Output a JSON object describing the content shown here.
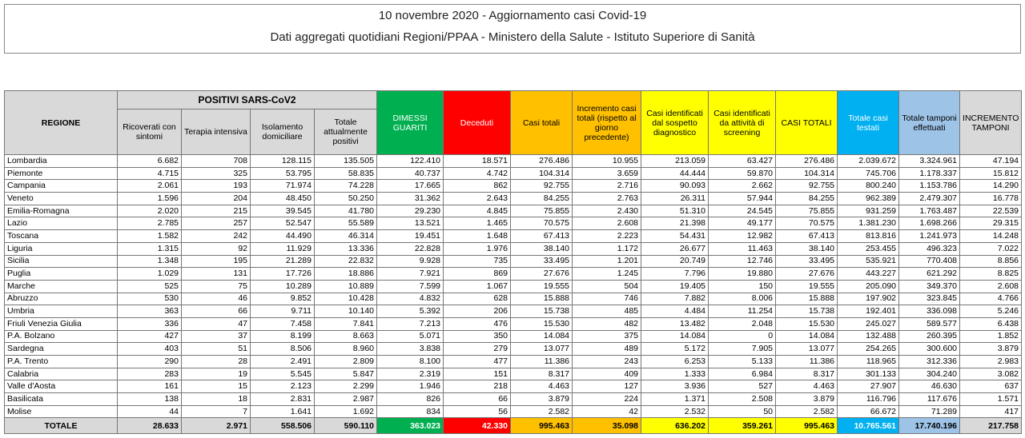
{
  "header": {
    "title": "10 novembre 2020 - Aggiornamento casi Covid-19",
    "subtitle": "Dati aggregati quotidiani Regioni/PPAA - Ministero della Salute - Istituto Superiore di Sanità"
  },
  "table": {
    "group_header": "POSITIVI SARS-CoV2",
    "columns": [
      "REGIONE",
      "Ricoverati con sintomi",
      "Terapia intensiva",
      "Isolamento domiciliare",
      "Totale attualmente positivi",
      "DIMESSI GUARITI",
      "Deceduti",
      "Casi totali",
      "Incremento casi totali (rispetto al giorno precedente)",
      "Casi identificati dal sospetto diagnostico",
      "Casi identificati da attività di screening",
      "CASI TOTALI",
      "Totale casi testati",
      "Totale tamponi effettuati",
      "INCREMENTO TAMPONI"
    ],
    "rows": [
      [
        "Lombardia",
        "6.682",
        "708",
        "128.115",
        "135.505",
        "122.410",
        "18.571",
        "276.486",
        "10.955",
        "213.059",
        "63.427",
        "276.486",
        "2.039.672",
        "3.324.961",
        "47.194"
      ],
      [
        "Piemonte",
        "4.715",
        "325",
        "53.795",
        "58.835",
        "40.737",
        "4.742",
        "104.314",
        "3.659",
        "44.444",
        "59.870",
        "104.314",
        "745.706",
        "1.178.337",
        "15.812"
      ],
      [
        "Campania",
        "2.061",
        "193",
        "71.974",
        "74.228",
        "17.665",
        "862",
        "92.755",
        "2.716",
        "90.093",
        "2.662",
        "92.755",
        "800.240",
        "1.153.786",
        "14.290"
      ],
      [
        "Veneto",
        "1.596",
        "204",
        "48.450",
        "50.250",
        "31.362",
        "2.643",
        "84.255",
        "2.763",
        "26.311",
        "57.944",
        "84.255",
        "962.389",
        "2.479.307",
        "16.778"
      ],
      [
        "Emilia-Romagna",
        "2.020",
        "215",
        "39.545",
        "41.780",
        "29.230",
        "4.845",
        "75.855",
        "2.430",
        "51.310",
        "24.545",
        "75.855",
        "931.259",
        "1.763.487",
        "22.539"
      ],
      [
        "Lazio",
        "2.785",
        "257",
        "52.547",
        "55.589",
        "13.521",
        "1.465",
        "70.575",
        "2.608",
        "21.398",
        "49.177",
        "70.575",
        "1.381.230",
        "1.698.266",
        "29.315"
      ],
      [
        "Toscana",
        "1.582",
        "242",
        "44.490",
        "46.314",
        "19.451",
        "1.648",
        "67.413",
        "2.223",
        "54.431",
        "12.982",
        "67.413",
        "813.816",
        "1.241.973",
        "14.248"
      ],
      [
        "Liguria",
        "1.315",
        "92",
        "11.929",
        "13.336",
        "22.828",
        "1.976",
        "38.140",
        "1.172",
        "26.677",
        "11.463",
        "38.140",
        "253.455",
        "496.323",
        "7.022"
      ],
      [
        "Sicilia",
        "1.348",
        "195",
        "21.289",
        "22.832",
        "9.928",
        "735",
        "33.495",
        "1.201",
        "20.749",
        "12.746",
        "33.495",
        "535.921",
        "770.408",
        "8.856"
      ],
      [
        "Puglia",
        "1.029",
        "131",
        "17.726",
        "18.886",
        "7.921",
        "869",
        "27.676",
        "1.245",
        "7.796",
        "19.880",
        "27.676",
        "443.227",
        "621.292",
        "8.825"
      ],
      [
        "Marche",
        "525",
        "75",
        "10.289",
        "10.889",
        "7.599",
        "1.067",
        "19.555",
        "504",
        "19.405",
        "150",
        "19.555",
        "205.090",
        "349.370",
        "2.608"
      ],
      [
        "Abruzzo",
        "530",
        "46",
        "9.852",
        "10.428",
        "4.832",
        "628",
        "15.888",
        "746",
        "7.882",
        "8.006",
        "15.888",
        "197.902",
        "323.845",
        "4.766"
      ],
      [
        "Umbria",
        "363",
        "66",
        "9.711",
        "10.140",
        "5.392",
        "206",
        "15.738",
        "485",
        "4.484",
        "11.254",
        "15.738",
        "192.401",
        "336.098",
        "5.246"
      ],
      [
        "Friuli Venezia Giulia",
        "336",
        "47",
        "7.458",
        "7.841",
        "7.213",
        "476",
        "15.530",
        "482",
        "13.482",
        "2.048",
        "15.530",
        "245.027",
        "589.577",
        "6.438"
      ],
      [
        "P.A. Bolzano",
        "427",
        "37",
        "8.199",
        "8.663",
        "5.071",
        "350",
        "14.084",
        "375",
        "14.084",
        "0",
        "14.084",
        "132.488",
        "260.395",
        "1.852"
      ],
      [
        "Sardegna",
        "403",
        "51",
        "8.506",
        "8.960",
        "3.838",
        "279",
        "13.077",
        "489",
        "5.172",
        "7.905",
        "13.077",
        "254.265",
        "300.600",
        "3.879"
      ],
      [
        "P.A. Trento",
        "290",
        "28",
        "2.491",
        "2.809",
        "8.100",
        "477",
        "11.386",
        "243",
        "6.253",
        "5.133",
        "11.386",
        "118.965",
        "312.336",
        "2.983"
      ],
      [
        "Calabria",
        "283",
        "19",
        "5.545",
        "5.847",
        "2.319",
        "151",
        "8.317",
        "409",
        "1.333",
        "6.984",
        "8.317",
        "301.133",
        "304.240",
        "3.082"
      ],
      [
        "Valle d'Aosta",
        "161",
        "15",
        "2.123",
        "2.299",
        "1.946",
        "218",
        "4.463",
        "127",
        "3.936",
        "527",
        "4.463",
        "27.907",
        "46.630",
        "637"
      ],
      [
        "Basilicata",
        "138",
        "18",
        "2.831",
        "2.987",
        "826",
        "66",
        "3.879",
        "224",
        "1.371",
        "2.508",
        "3.879",
        "116.796",
        "117.676",
        "1.571"
      ],
      [
        "Molise",
        "44",
        "7",
        "1.641",
        "1.692",
        "834",
        "56",
        "2.582",
        "42",
        "2.532",
        "50",
        "2.582",
        "66.672",
        "71.289",
        "417"
      ]
    ],
    "total": [
      "TOTALE",
      "28.633",
      "2.971",
      "558.506",
      "590.110",
      "363.023",
      "42.330",
      "995.463",
      "35.098",
      "636.202",
      "359.261",
      "995.463",
      "10.765.561",
      "17.740.196",
      "217.758"
    ]
  }
}
